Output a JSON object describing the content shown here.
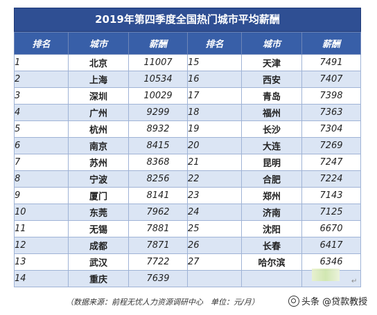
{
  "table": {
    "title": "2019年第四季度全国热门城市平均薪酬",
    "headers": [
      "排名",
      "城市",
      "薪酬",
      "排名",
      "城市",
      "薪酬"
    ],
    "rows": [
      [
        "1",
        "北京",
        "11007",
        "15",
        "天津",
        "7491"
      ],
      [
        "2",
        "上海",
        "10534",
        "16",
        "西安",
        "7407"
      ],
      [
        "3",
        "深圳",
        "10029",
        "17",
        "青岛",
        "7398"
      ],
      [
        "4",
        "广州",
        "9299",
        "18",
        "福州",
        "7363"
      ],
      [
        "5",
        "杭州",
        "8932",
        "19",
        "长沙",
        "7304"
      ],
      [
        "6",
        "南京",
        "8415",
        "20",
        "大连",
        "7269"
      ],
      [
        "7",
        "苏州",
        "8368",
        "21",
        "昆明",
        "7247"
      ],
      [
        "8",
        "宁波",
        "8256",
        "22",
        "合肥",
        "7224"
      ],
      [
        "9",
        "厦门",
        "8141",
        "23",
        "郑州",
        "7143"
      ],
      [
        "10",
        "东莞",
        "7962",
        "24",
        "济南",
        "7125"
      ],
      [
        "11",
        "无锡",
        "7881",
        "25",
        "沈阳",
        "6670"
      ],
      [
        "12",
        "成都",
        "7871",
        "26",
        "长春",
        "6417"
      ],
      [
        "13",
        "武汉",
        "7722",
        "27",
        "哈尔滨",
        "6346"
      ],
      [
        "14",
        "重庆",
        "7639",
        "",
        "",
        ""
      ]
    ]
  },
  "footer": {
    "note": "（数据来源：前程无忧人力资源调研中心　单位：元/月）"
  },
  "watermark": {
    "text": "头条 @贷款教授",
    "icon": "toutiao-logo-icon"
  },
  "marks": {
    "pilcrow": "↵"
  },
  "colors": {
    "title_bg": "#2f4f93",
    "header_bg": "#385fa8",
    "stripe": "#dbe5f4"
  }
}
